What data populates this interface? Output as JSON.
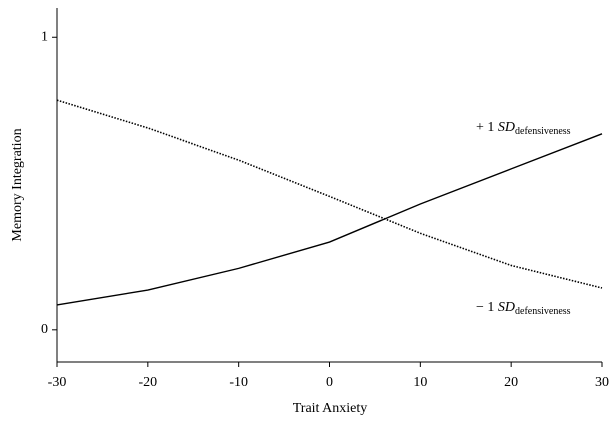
{
  "chart_data": {
    "type": "line",
    "x_label": "Trait Anxiety",
    "y_label": "Memory Integration",
    "x": [
      -30,
      -20,
      -10,
      0,
      10,
      20,
      30
    ],
    "series": [
      {
        "label": {
          "prefix": "+ 1 ",
          "symbol": "SD",
          "subscript": "defensiveness"
        },
        "color": "#000000",
        "line_style": "solid",
        "values": [
          0.085,
          0.136,
          0.21,
          0.3,
          0.43,
          0.55,
          0.67
        ]
      },
      {
        "label": {
          "prefix": "− 1 ",
          "symbol": "SD",
          "subscript": "defensiveness"
        },
        "color": "#000000",
        "line_style": "dotted",
        "values": [
          0.785,
          0.69,
          0.58,
          0.456,
          0.33,
          0.22,
          0.143
        ]
      }
    ],
    "xlim": [
      -30,
      30
    ],
    "xticks": [
      -30,
      -20,
      -10,
      0,
      10,
      20,
      30
    ],
    "ylim": [
      -0.11,
      1.1
    ],
    "yticks": [
      0,
      1
    ],
    "grid": false
  }
}
